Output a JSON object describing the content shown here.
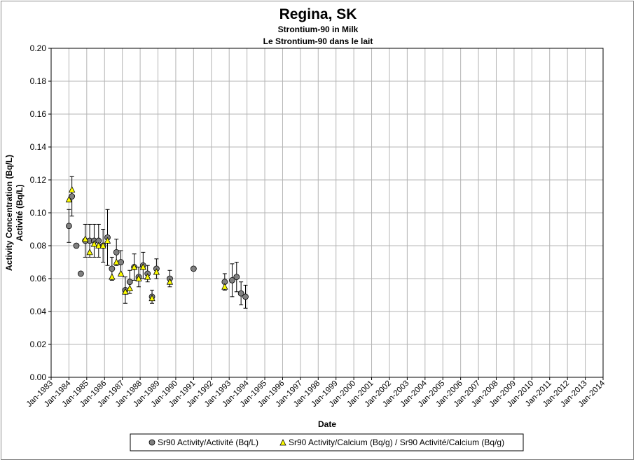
{
  "chart_data": {
    "type": "scatter",
    "title": "Regina, SK",
    "subtitle_1": "Strontium-90 in Milk",
    "subtitle_2": "Le Strontium-90 dans le lait",
    "xlabel": "Date",
    "ylabel_1": "Activity Concentration (Bq/L)",
    "ylabel_2": "Activité (Bq/L)",
    "ylim": [
      0,
      0.2
    ],
    "yticks": [
      "0.00",
      "0.02",
      "0.04",
      "0.06",
      "0.08",
      "0.10",
      "0.12",
      "0.14",
      "0.16",
      "0.18",
      "0.20"
    ],
    "xlim": [
      1983,
      2014
    ],
    "xticks": [
      "Jan-1983",
      "Jan-1984",
      "Jan-1985",
      "Jan-1986",
      "Jan-1987",
      "Jan-1988",
      "Jan-1989",
      "Jan-1990",
      "Jan-1991",
      "Jan-1992",
      "Jan-1993",
      "Jan-1994",
      "Jan-1995",
      "Jan-1996",
      "Jan-1997",
      "Jan-1998",
      "Jan-1999",
      "Jan-2000",
      "Jan-2001",
      "Jan-2002",
      "Jan-2003",
      "Jan-2004",
      "Jan-2005",
      "Jan-2006",
      "Jan-2007",
      "Jan-2008",
      "Jan-2009",
      "Jan-2010",
      "Jan-2011",
      "Jan-2012",
      "Jan-2013",
      "Jan-2014"
    ],
    "grid": true,
    "legend_position": "bottom",
    "series": [
      {
        "name": "Sr90 Activity/Activité (Bq/L)",
        "marker": "circle",
        "color": "#808080",
        "points": [
          {
            "x": "1984-01",
            "y": 0.092,
            "err": 0.01
          },
          {
            "x": "1984-03",
            "y": 0.11,
            "err": 0.012
          },
          {
            "x": "1984-06",
            "y": 0.08
          },
          {
            "x": "1984-09",
            "y": 0.063
          },
          {
            "x": "1984-12",
            "y": 0.083,
            "err": 0.01
          },
          {
            "x": "1985-03",
            "y": 0.083,
            "err": 0.01
          },
          {
            "x": "1985-06",
            "y": 0.083,
            "err": 0.01
          },
          {
            "x": "1985-09",
            "y": 0.083,
            "err": 0.01
          },
          {
            "x": "1985-12",
            "y": 0.08,
            "err": 0.01
          },
          {
            "x": "1986-03",
            "y": 0.085,
            "err": 0.017
          },
          {
            "x": "1986-06",
            "y": 0.066,
            "err": 0.007
          },
          {
            "x": "1986-09",
            "y": 0.076,
            "err": 0.008
          },
          {
            "x": "1986-12",
            "y": 0.07,
            "err": 0.007
          },
          {
            "x": "1987-03",
            "y": 0.053,
            "err": 0.008
          },
          {
            "x": "1987-06",
            "y": 0.058,
            "err": 0.007
          },
          {
            "x": "1987-09",
            "y": 0.067,
            "err": 0.008
          },
          {
            "x": "1987-12",
            "y": 0.061,
            "err": 0.006
          },
          {
            "x": "1988-03",
            "y": 0.068,
            "err": 0.008
          },
          {
            "x": "1988-06",
            "y": 0.063,
            "err": 0.005
          },
          {
            "x": "1988-09",
            "y": 0.049,
            "err": 0.004
          },
          {
            "x": "1988-12",
            "y": 0.066,
            "err": 0.006
          },
          {
            "x": "1989-09",
            "y": 0.06,
            "err": 0.005
          },
          {
            "x": "1991-01",
            "y": 0.066
          },
          {
            "x": "1992-10",
            "y": 0.058,
            "err": 0.005
          },
          {
            "x": "1993-03",
            "y": 0.059,
            "err": 0.01
          },
          {
            "x": "1993-06",
            "y": 0.061,
            "err": 0.009
          },
          {
            "x": "1993-09",
            "y": 0.051,
            "err": 0.007
          },
          {
            "x": "1993-12",
            "y": 0.049,
            "err": 0.007
          }
        ]
      },
      {
        "name": "Sr90 Activity/Calcium (Bq/g) / Sr90 Activité/Calcium (Bq/g)",
        "marker": "triangle",
        "color": "#ffff00",
        "points": [
          {
            "x": "1984-01",
            "y": 0.108
          },
          {
            "x": "1984-03",
            "y": 0.114
          },
          {
            "x": "1984-12",
            "y": 0.084
          },
          {
            "x": "1985-03",
            "y": 0.076
          },
          {
            "x": "1985-06",
            "y": 0.081
          },
          {
            "x": "1985-09",
            "y": 0.08
          },
          {
            "x": "1985-12",
            "y": 0.08
          },
          {
            "x": "1986-03",
            "y": 0.083
          },
          {
            "x": "1986-06",
            "y": 0.061
          },
          {
            "x": "1986-09",
            "y": 0.07
          },
          {
            "x": "1986-12",
            "y": 0.063
          },
          {
            "x": "1987-03",
            "y": 0.052
          },
          {
            "x": "1987-06",
            "y": 0.054
          },
          {
            "x": "1987-09",
            "y": 0.067
          },
          {
            "x": "1987-12",
            "y": 0.06
          },
          {
            "x": "1988-03",
            "y": 0.067
          },
          {
            "x": "1988-06",
            "y": 0.061
          },
          {
            "x": "1988-09",
            "y": 0.048
          },
          {
            "x": "1988-12",
            "y": 0.064
          },
          {
            "x": "1989-09",
            "y": 0.058
          },
          {
            "x": "1992-10",
            "y": 0.055
          }
        ]
      }
    ]
  }
}
